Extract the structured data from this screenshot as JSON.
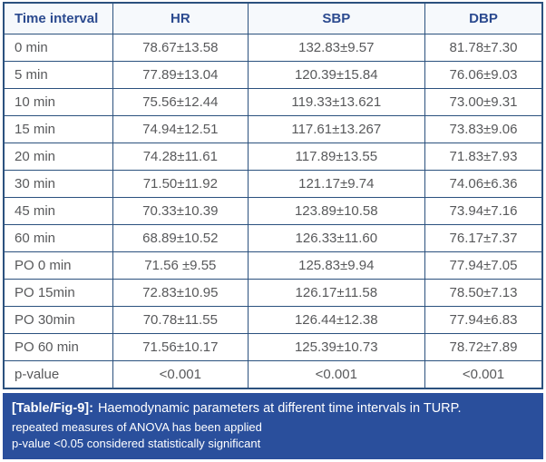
{
  "table": {
    "columns": [
      "Time interval",
      "HR",
      "SBP",
      "DBP"
    ],
    "rows": [
      {
        "label": "0 min",
        "values": [
          "78.67±13.58",
          "132.83±9.57",
          "81.78±7.30"
        ]
      },
      {
        "label": "5 min",
        "values": [
          "77.89±13.04",
          "120.39±15.84",
          "76.06±9.03"
        ]
      },
      {
        "label": "10 min",
        "values": [
          "75.56±12.44",
          "119.33±13.621",
          "73.00±9.31"
        ]
      },
      {
        "label": "15 min",
        "values": [
          "74.94±12.51",
          "117.61±13.267",
          "73.83±9.06"
        ]
      },
      {
        "label": "20 min",
        "values": [
          "74.28±11.61",
          "117.89±13.55",
          "71.83±7.93"
        ]
      },
      {
        "label": "30 min",
        "values": [
          "71.50±11.92",
          "121.17±9.74",
          "74.06±6.36"
        ]
      },
      {
        "label": "45 min",
        "values": [
          "70.33±10.39",
          "123.89±10.58",
          "73.94±7.16"
        ]
      },
      {
        "label": "60 min",
        "values": [
          "68.89±10.52",
          "126.33±11.60",
          "76.17±7.37"
        ]
      },
      {
        "label": "PO 0 min",
        "values": [
          "71.56 ±9.55",
          "125.83±9.94",
          "77.94±7.05"
        ]
      },
      {
        "label": "PO 15min",
        "values": [
          "72.83±10.95",
          "126.17±11.58",
          "78.50±7.13"
        ]
      },
      {
        "label": "PO 30min",
        "values": [
          "70.78±11.55",
          "126.44±12.38",
          "77.94±6.83"
        ]
      },
      {
        "label": "PO 60 min",
        "values": [
          "71.56±10.17",
          "125.39±10.73",
          "78.72±7.89"
        ]
      },
      {
        "label": "p-value",
        "values": [
          "<0.001",
          "<0.001",
          "<0.001"
        ]
      }
    ]
  },
  "caption": {
    "label": "[Table/Fig-9]:",
    "title": "Haemodynamic parameters at different time intervals in TURP.",
    "notes": [
      "repeated measures of ANOVA has been applied",
      "p-value <0.05 considered statistically significant"
    ]
  },
  "colors": {
    "panel_blue": "#2a4f9c",
    "header_text_blue": "#2b4a8f",
    "border_navy": "#2b517e",
    "body_text_gray": "#58595b"
  }
}
